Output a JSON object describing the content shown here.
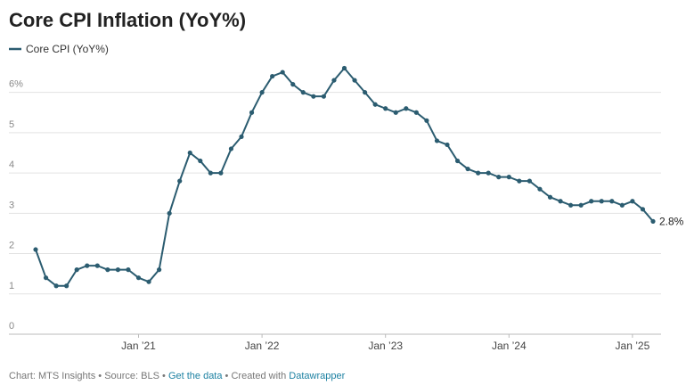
{
  "chart_data": {
    "type": "line",
    "title": "Core CPI Inflation (YoY%)",
    "categories": [
      null,
      null,
      null,
      null,
      null,
      null,
      null,
      null,
      null,
      null,
      "Jan ’21",
      null,
      null,
      null,
      null,
      null,
      null,
      null,
      null,
      null,
      null,
      null,
      "Jan ’22",
      null,
      null,
      null,
      null,
      null,
      null,
      null,
      null,
      null,
      null,
      null,
      "Jan ’23",
      null,
      null,
      null,
      null,
      null,
      null,
      null,
      null,
      null,
      null,
      null,
      "Jan ’24",
      null,
      null,
      null,
      null,
      null,
      null,
      null,
      null,
      null,
      null,
      null,
      "Jan ’25",
      null,
      null
    ],
    "series": [
      {
        "name": "Core CPI (YoY%)",
        "color": "#2b5c70",
        "values": [
          2.1,
          1.4,
          1.2,
          1.2,
          1.6,
          1.7,
          1.7,
          1.6,
          1.6,
          1.6,
          1.4,
          1.3,
          1.6,
          3.0,
          3.8,
          4.5,
          4.3,
          4.0,
          4.0,
          4.6,
          4.9,
          5.5,
          6.0,
          6.4,
          6.5,
          6.2,
          6.0,
          5.9,
          5.9,
          6.3,
          6.6,
          6.3,
          6.0,
          5.7,
          5.6,
          5.5,
          5.6,
          5.5,
          5.3,
          4.8,
          4.7,
          4.3,
          4.1,
          4.0,
          4.0,
          3.9,
          3.9,
          3.8,
          3.8,
          3.6,
          3.4,
          3.3,
          3.2,
          3.2,
          3.3,
          3.3,
          3.3,
          3.2,
          3.3,
          3.1,
          2.8
        ],
        "value_labels": [
          null,
          null,
          null,
          null,
          null,
          null,
          null,
          null,
          null,
          null,
          null,
          null,
          null,
          null,
          null,
          null,
          null,
          null,
          null,
          null,
          null,
          null,
          null,
          null,
          null,
          null,
          null,
          null,
          null,
          null,
          null,
          null,
          null,
          null,
          null,
          null,
          null,
          null,
          null,
          null,
          null,
          null,
          null,
          null,
          null,
          null,
          null,
          null,
          null,
          null,
          null,
          null,
          null,
          null,
          null,
          null,
          null,
          null,
          null,
          null,
          "2.8%"
        ]
      }
    ],
    "ylim": [
      0,
      6.7
    ],
    "yticks": [
      0,
      1,
      2,
      3,
      4,
      5,
      {
        "value": 6,
        "label": "6%"
      }
    ],
    "grid": true,
    "legend": "top-left",
    "footer": {
      "credit": "Chart: MTS Insights",
      "separator": "•",
      "source": "Source: BLS",
      "link": "Get the data",
      "created": "Created with",
      "tool": "Datawrapper"
    }
  }
}
